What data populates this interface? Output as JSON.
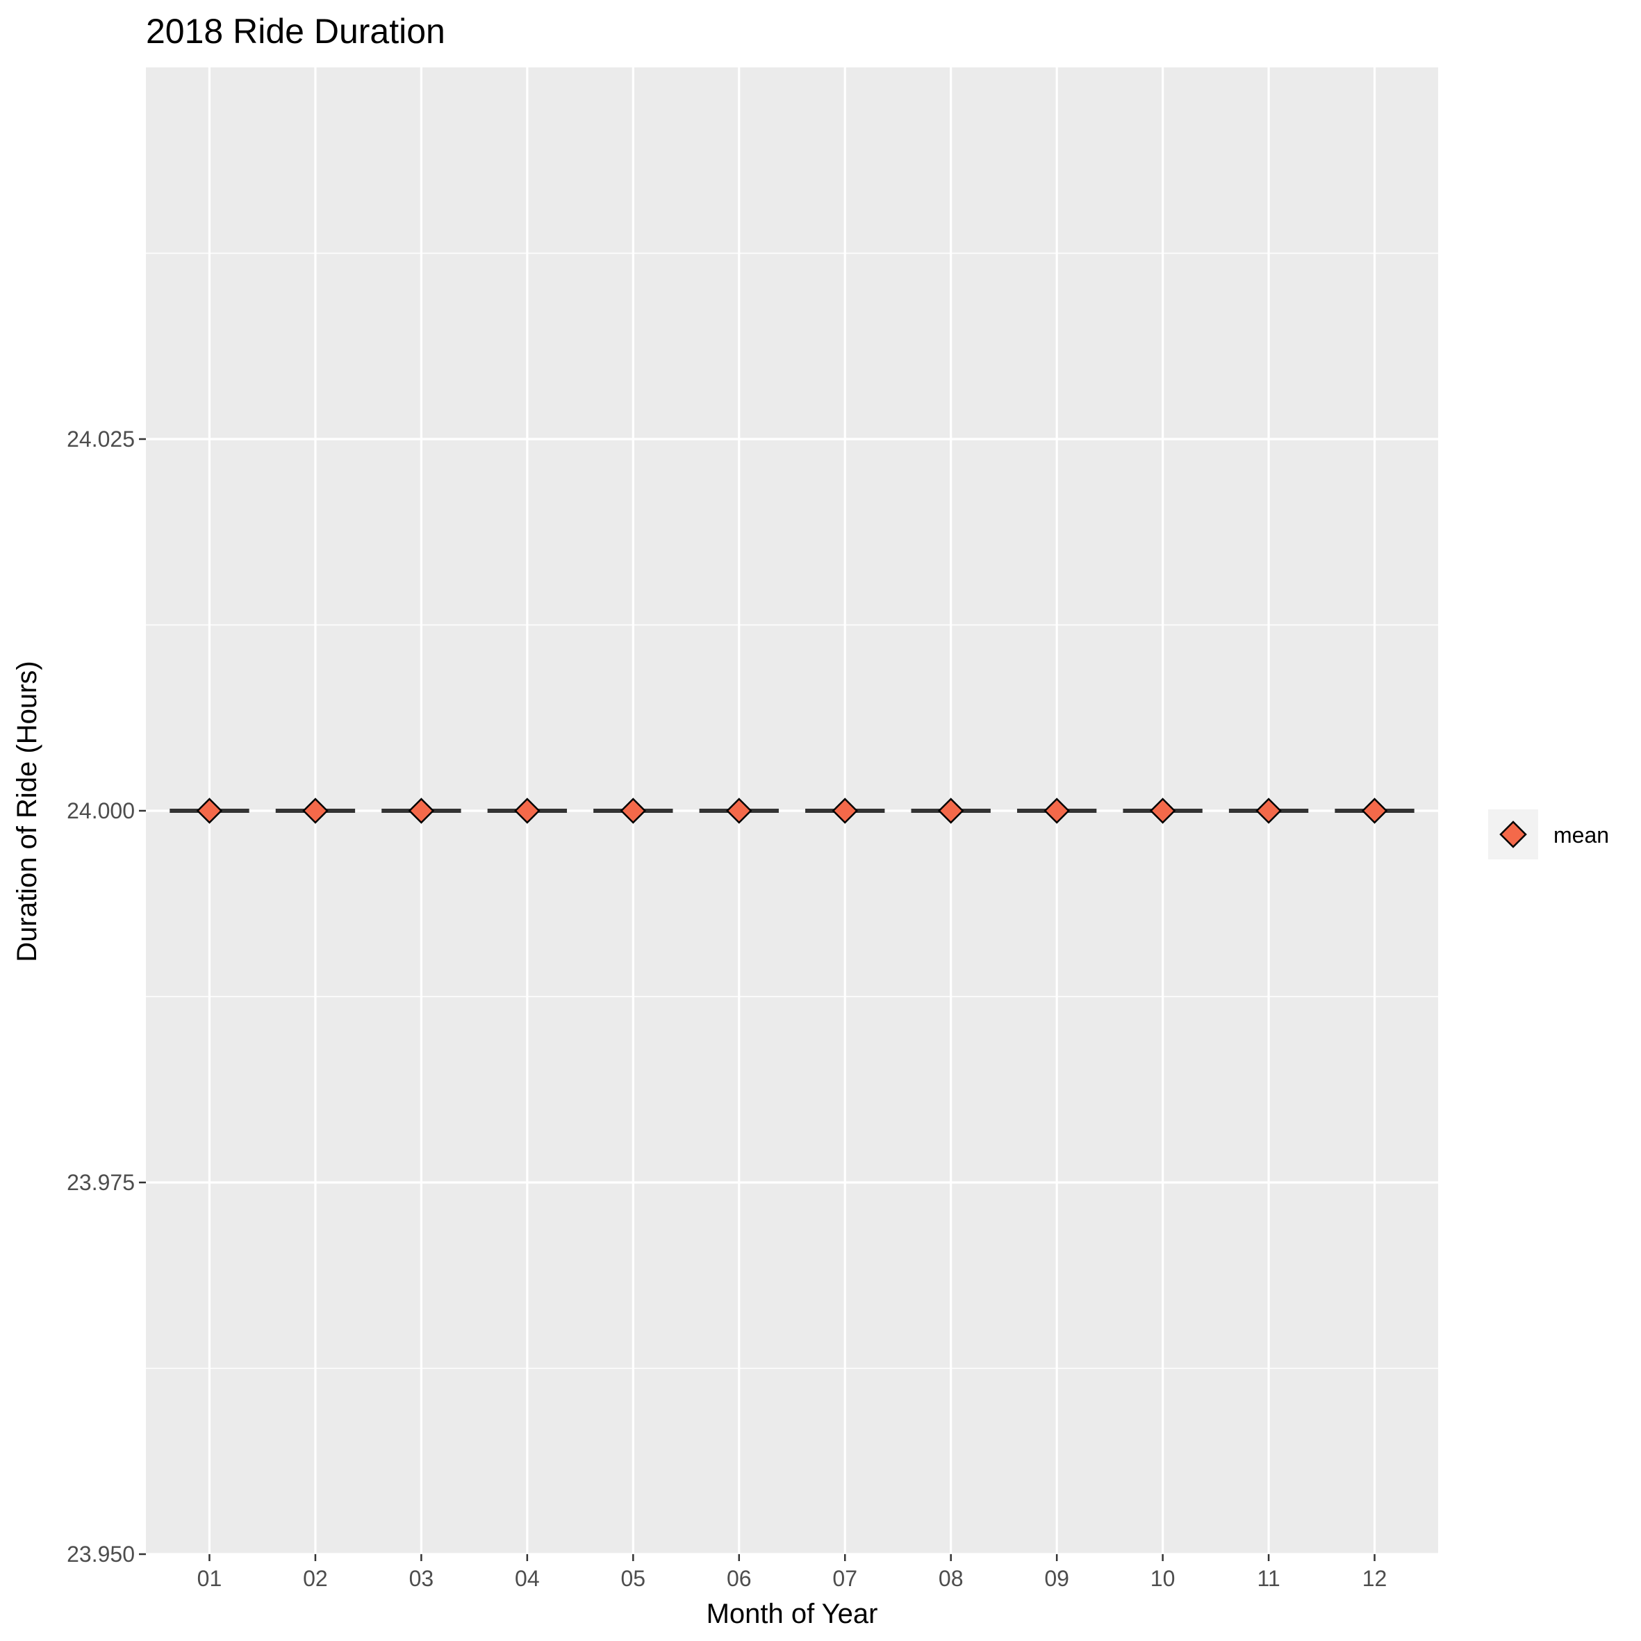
{
  "chart_data": {
    "type": "scatter",
    "title": "2018 Ride Duration",
    "xlabel": "Month of Year",
    "ylabel": "Duration of Ride (Hours)",
    "categories": [
      "01",
      "02",
      "03",
      "04",
      "05",
      "06",
      "07",
      "08",
      "09",
      "10",
      "11",
      "12"
    ],
    "ylim": [
      23.95,
      24.05
    ],
    "y_ticks": [
      23.95,
      23.975,
      24.0,
      24.025
    ],
    "y_tick_labels": [
      "23.950",
      "23.975",
      "24.000",
      "24.025"
    ],
    "series": [
      {
        "name": "mean",
        "marker": "diamond",
        "values": [
          24,
          24,
          24,
          24,
          24,
          24,
          24,
          24,
          24,
          24,
          24,
          24
        ]
      }
    ],
    "median_lines": [
      24,
      24,
      24,
      24,
      24,
      24,
      24,
      24,
      24,
      24,
      24,
      24
    ],
    "grid": true,
    "legend_position": "right",
    "colors": {
      "panel_background": "#ebebeb",
      "grid": "#ffffff",
      "marker_fill": "#f4694a",
      "marker_stroke": "#000000",
      "median_line": "#333333",
      "legend_key_background": "#f2f2f2"
    }
  }
}
